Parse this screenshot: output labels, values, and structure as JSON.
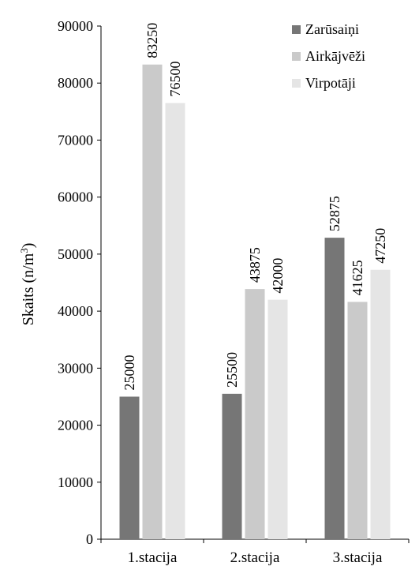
{
  "chart_data": {
    "type": "bar",
    "title": "",
    "xlabel": "",
    "ylabel": "Skaits (n/m",
    "ylabel_superscript": "3",
    "ylabel_close": ")",
    "ylim": [
      0,
      90000
    ],
    "yticks": [
      0,
      10000,
      20000,
      30000,
      40000,
      50000,
      60000,
      70000,
      80000,
      90000
    ],
    "categories": [
      "1.stacija",
      "2.stacija",
      "3.stacija"
    ],
    "series": [
      {
        "name": "Zarūsaiņi",
        "color": "#767676",
        "values": [
          25000,
          25500,
          52875
        ]
      },
      {
        "name": "Airkājvēži",
        "color": "#cacaca",
        "values": [
          83250,
          43875,
          41625
        ]
      },
      {
        "name": "Virpotāji",
        "color": "#e5e5e5",
        "values": [
          76500,
          42000,
          47250
        ]
      }
    ],
    "grid": false,
    "legend_position": "top-right"
  }
}
